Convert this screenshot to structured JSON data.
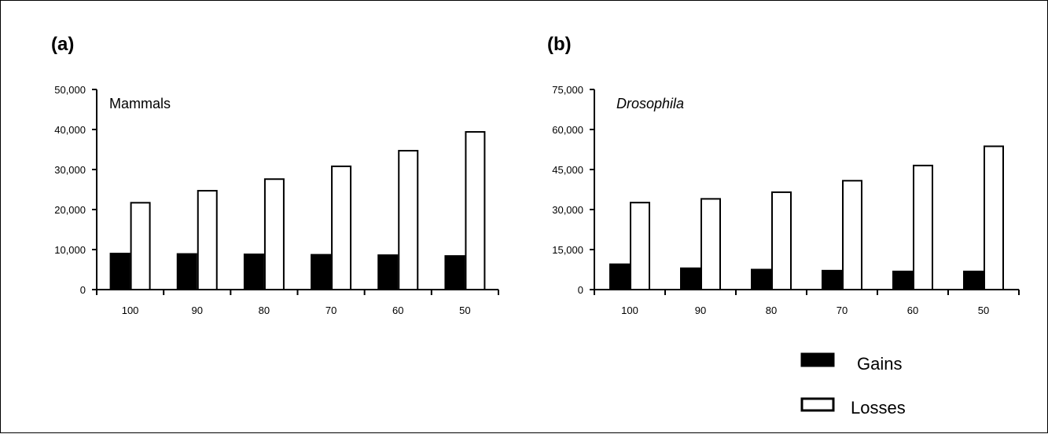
{
  "chart_data": [
    {
      "type": "bar",
      "panel_label": "(a)",
      "title": "Mammals",
      "title_italic": false,
      "categories": [
        "100",
        "90",
        "80",
        "70",
        "60",
        "50"
      ],
      "series": [
        {
          "name": "Gains",
          "values": [
            9000,
            8900,
            8800,
            8700,
            8600,
            8400
          ]
        },
        {
          "name": "Losses",
          "values": [
            21700,
            24700,
            27600,
            30800,
            34700,
            39400
          ]
        }
      ],
      "ylim": [
        0,
        50000
      ],
      "yticks": [
        "0",
        "10,000",
        "20,000",
        "30,000",
        "40,000",
        "50,000"
      ],
      "ytick_values": [
        0,
        10000,
        20000,
        30000,
        40000,
        50000
      ],
      "xlabel": "",
      "ylabel": "",
      "grid": false
    },
    {
      "type": "bar",
      "panel_label": "(b)",
      "title": "Drosophila",
      "title_italic": true,
      "categories": [
        "100",
        "90",
        "80",
        "70",
        "60",
        "50"
      ],
      "series": [
        {
          "name": "Gains",
          "values": [
            9500,
            8000,
            7500,
            7100,
            6800,
            6800
          ]
        },
        {
          "name": "Losses",
          "values": [
            32600,
            34000,
            36500,
            40800,
            46500,
            53700
          ]
        }
      ],
      "ylim": [
        0,
        75000
      ],
      "yticks": [
        "0",
        "15,000",
        "30,000",
        "45,000",
        "60,000",
        "75,000"
      ],
      "ytick_values": [
        0,
        15000,
        30000,
        45000,
        60000,
        75000
      ],
      "xlabel": "",
      "ylabel": "",
      "grid": false
    }
  ],
  "legend": {
    "items": [
      {
        "label": "Gains",
        "fill": "#000000"
      },
      {
        "label": "Losses",
        "fill": "#ffffff"
      }
    ]
  }
}
